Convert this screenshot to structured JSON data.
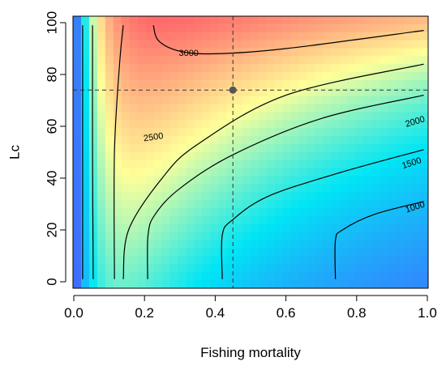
{
  "chart_data": {
    "type": "heatmap",
    "title": "",
    "xlabel": "Fishing mortality",
    "ylabel": "Lc",
    "xlim": [
      0,
      1
    ],
    "ylim": [
      0,
      100
    ],
    "x_ticks": [
      "0.0",
      "0.2",
      "0.4",
      "0.6",
      "0.8",
      "1.0"
    ],
    "y_ticks": [
      "0",
      "20",
      "40",
      "60",
      "80",
      "100"
    ],
    "colorscale": [
      "#3f6fff",
      "#00e5f5",
      "#ffff99",
      "#ff6b6b"
    ],
    "reference_point": {
      "x": 0.45,
      "y": 74
    },
    "contours": [
      {
        "level": 1000,
        "label": "1000",
        "segments": [
          [
            [
              0.74,
              1
            ],
            [
              0.74,
              16
            ],
            [
              0.76,
              20
            ],
            [
              0.85,
              26
            ],
            [
              0.99,
              31
            ]
          ]
        ]
      },
      {
        "level": 1500,
        "label": "1500",
        "segments": [
          [
            [
              0.42,
              1
            ],
            [
              0.42,
              18
            ],
            [
              0.45,
              24
            ],
            [
              0.55,
              33
            ],
            [
              0.75,
              42
            ],
            [
              0.99,
              51
            ]
          ]
        ]
      },
      {
        "level": 2000,
        "label": "2000",
        "segments": [
          [
            [
              0.209,
              1
            ],
            [
              0.21,
              18
            ],
            [
              0.23,
              26
            ],
            [
              0.3,
              36
            ],
            [
              0.45,
              49
            ],
            [
              0.7,
              63
            ],
            [
              0.99,
              72
            ]
          ],
          [
            [
              0.055,
              1
            ],
            [
              0.053,
              50
            ],
            [
              0.053,
              99
            ]
          ]
        ]
      },
      {
        "level": 2500,
        "label": "2500",
        "segments": [
          [
            [
              0.115,
              1
            ],
            [
              0.115,
              50
            ],
            [
              0.13,
              85
            ],
            [
              0.14,
              99
            ]
          ],
          [
            [
              0.14,
              1
            ],
            [
              0.155,
              20
            ],
            [
              0.25,
              40
            ],
            [
              0.35,
              53
            ],
            [
              0.6,
              72
            ],
            [
              0.99,
              84
            ]
          ]
        ]
      },
      {
        "level": 3000,
        "label": "3000",
        "segments": [
          [
            [
              0.225,
              99
            ],
            [
              0.24,
              93
            ],
            [
              0.3,
              89
            ],
            [
              0.4,
              88
            ],
            [
              0.6,
              90
            ],
            [
              0.99,
              97
            ]
          ]
        ]
      },
      {
        "level": 1000,
        "label": "",
        "segments": [
          [
            [
              0.025,
              1
            ],
            [
              0.025,
              99
            ]
          ]
        ]
      }
    ]
  }
}
